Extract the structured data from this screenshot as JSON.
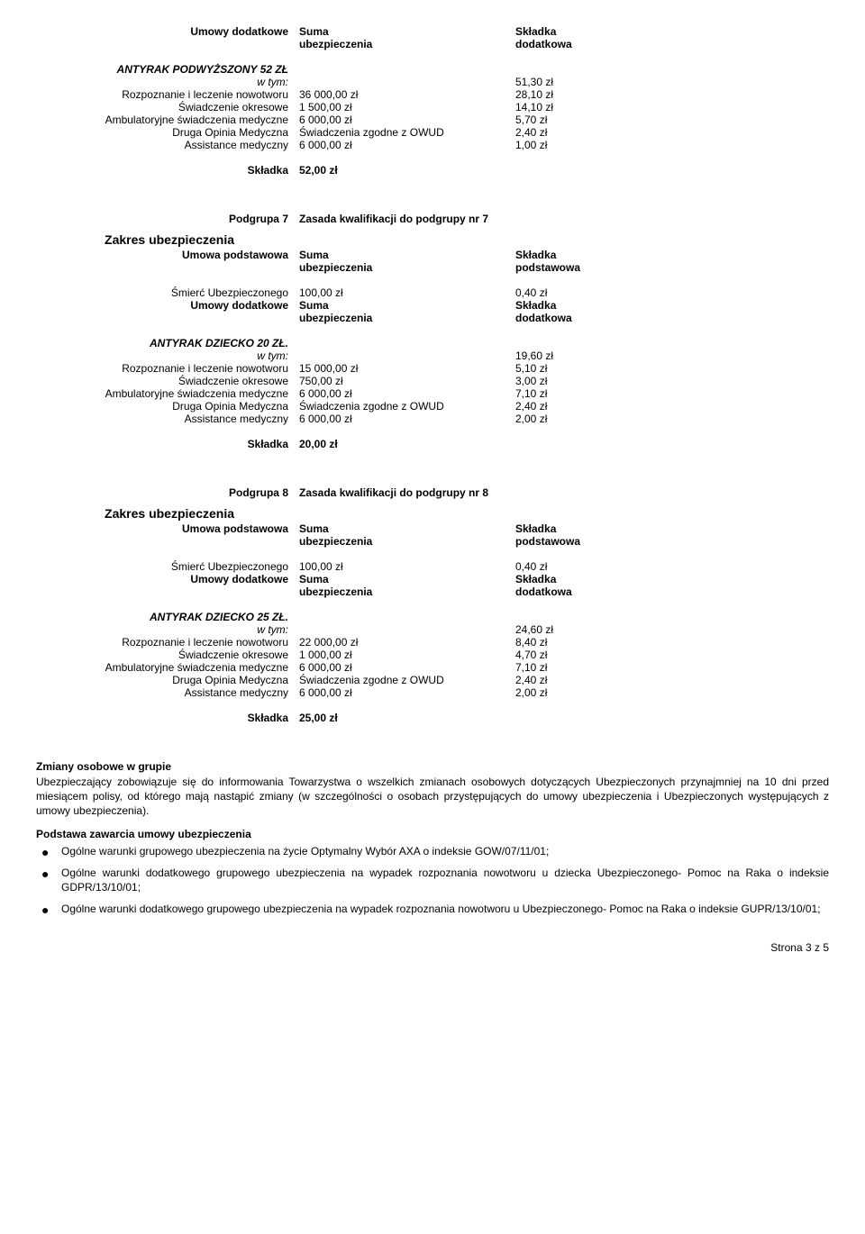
{
  "labels": {
    "umowy_dodatkowe": "Umowy dodatkowe",
    "suma_ubezpieczenia": "Suma\nubezpieczenia",
    "skladka_dodatkowa": "Składka\ndodatkowa",
    "skladka_podstawowa": "Składka\npodstawowa",
    "umowa_podstawowa": "Umowa podstawowa",
    "zakres": "Zakres ubezpieczenia",
    "smierc": "Śmierć Ubezpieczonego",
    "wtym": "w tym:",
    "skladka": "Składka",
    "podgrupa7": "Podgrupa 7",
    "podgrupa8": "Podgrupa 8",
    "zasada7": "Zasada kwalifikacji do podgrupy nr 7",
    "zasada8": "Zasada kwalifikacji do podgrupy nr 8"
  },
  "block1": {
    "title": "ANTYRAK PODWYŻSZONY 52 ZŁ",
    "wtym_value": "51,30 zł",
    "rows": [
      {
        "label": "Rozpoznanie i leczenie nowotworu",
        "suma": "36 000,00 zł",
        "skladka": "28,10 zł"
      },
      {
        "label": "Świadczenie okresowe",
        "suma": "1 500,00 zł",
        "skladka": "14,10 zł"
      },
      {
        "label": "Ambulatoryjne świadczenia medyczne",
        "suma": "6 000,00 zł",
        "skladka": "5,70 zł"
      },
      {
        "label": "Druga Opinia Medyczna",
        "suma": "Świadczenia zgodne z OWUD",
        "skladka": "2,40 zł"
      },
      {
        "label": "Assistance medyczny",
        "suma": "6 000,00 zł",
        "skladka": "1,00 zł"
      }
    ],
    "total": "52,00 zł"
  },
  "group7": {
    "smierc_suma": "100,00 zł",
    "smierc_skladka": "0,40 zł",
    "title": "ANTYRAK DZIECKO 20 ZŁ.",
    "wtym_value": "19,60 zł",
    "rows": [
      {
        "label": "Rozpoznanie i leczenie nowotworu",
        "suma": "15 000,00 zł",
        "skladka": "5,10 zł"
      },
      {
        "label": "Świadczenie okresowe",
        "suma": "750,00 zł",
        "skladka": "3,00 zł"
      },
      {
        "label": "Ambulatoryjne świadczenia medyczne",
        "suma": "6 000,00 zł",
        "skladka": "7,10 zł"
      },
      {
        "label": "Druga Opinia Medyczna",
        "suma": "Świadczenia zgodne z OWUD",
        "skladka": "2,40 zł"
      },
      {
        "label": "Assistance medyczny",
        "suma": "6 000,00 zł",
        "skladka": "2,00 zł"
      }
    ],
    "total": "20,00 zł"
  },
  "group8": {
    "smierc_suma": "100,00 zł",
    "smierc_skladka": "0,40 zł",
    "title": "ANTYRAK DZIECKO 25 ZŁ.",
    "wtym_value": "24,60 zł",
    "rows": [
      {
        "label": "Rozpoznanie i leczenie nowotworu",
        "suma": "22 000,00 zł",
        "skladka": "8,40 zł"
      },
      {
        "label": "Świadczenie okresowe",
        "suma": "1 000,00 zł",
        "skladka": "4,70 zł"
      },
      {
        "label": "Ambulatoryjne świadczenia medyczne",
        "suma": "6 000,00 zł",
        "skladka": "7,10 zł"
      },
      {
        "label": "Druga Opinia Medyczna",
        "suma": "Świadczenia zgodne z OWUD",
        "skladka": "2,40 zł"
      },
      {
        "label": "Assistance medyczny",
        "suma": "6 000,00 zł",
        "skladka": "2,00 zł"
      }
    ],
    "total": "25,00 zł"
  },
  "text": {
    "zmiany_heading": "Zmiany osobowe w grupie",
    "zmiany_body": "Ubezpieczający zobowiązuje się do informowania Towarzystwa o wszelkich zmianach osobowych dotyczących Ubezpieczonych przynajmniej na 10 dni przed miesiącem polisy, od którego mają nastąpić zmiany (w szczególności o osobach przystępujących do umowy ubezpieczenia i Ubezpieczonych występujących z umowy ubezpieczenia).",
    "podstawa_heading": "Podstawa zawarcia umowy ubezpieczenia",
    "bullets": [
      "Ogólne warunki grupowego ubezpieczenia na życie Optymalny Wybór AXA o indeksie GOW/07/11/01;",
      "Ogólne warunki dodatkowego grupowego ubezpieczenia na wypadek rozpoznania nowotworu u dziecka Ubezpieczonego- Pomoc na Raka o indeksie GDPR/13/10/01;",
      "Ogólne warunki dodatkowego grupowego ubezpieczenia na wypadek rozpoznania nowotworu u Ubezpieczonego- Pomoc na Raka o indeksie GUPR/13/10/01;"
    ]
  },
  "footer": "Strona 3 z 5"
}
